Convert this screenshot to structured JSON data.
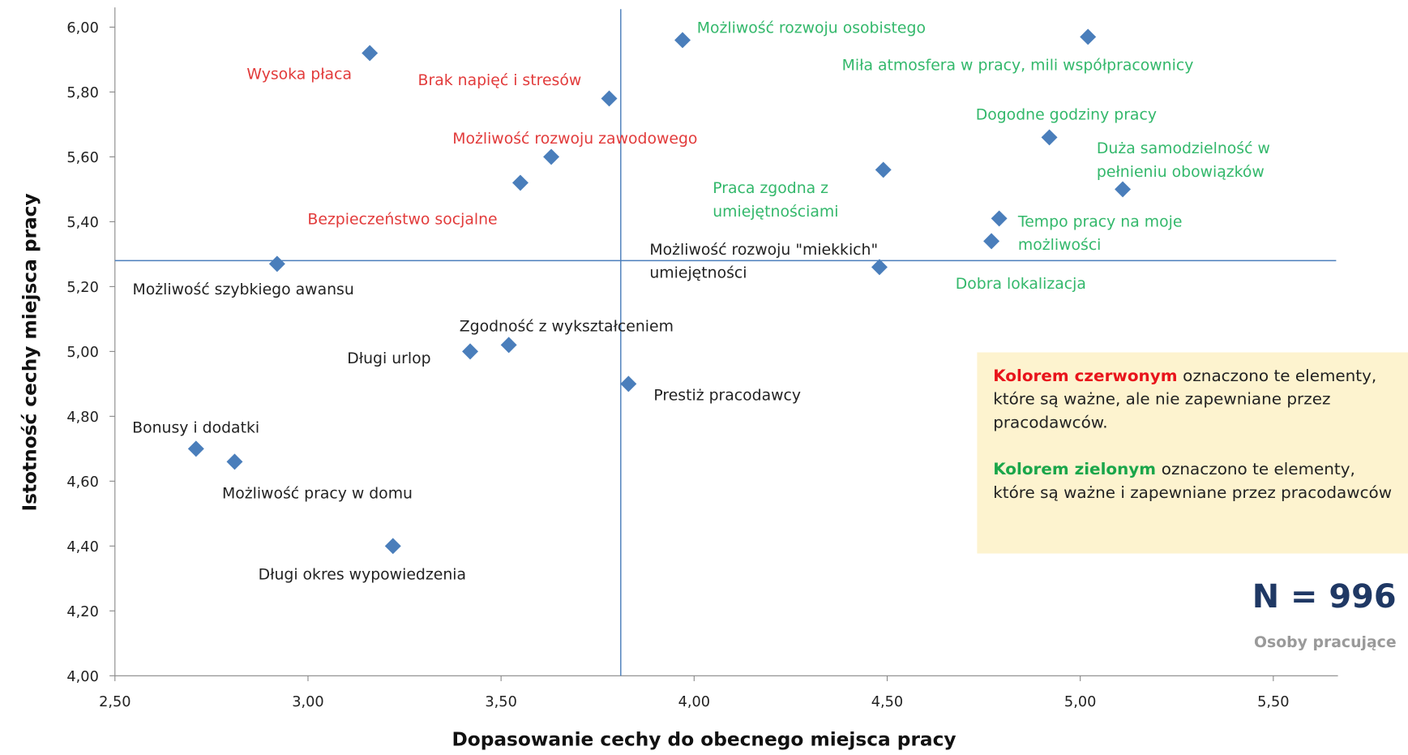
{
  "chart_data": {
    "type": "scatter",
    "x_label": "Dopasowanie cechy do obecnego miejsca pracy",
    "y_label": "Istotność cechy miejsca pracy",
    "xlim": [
      2.5,
      5.5
    ],
    "ylim": [
      4,
      6
    ],
    "xticks": [
      {
        "value": 2.5,
        "label": "2,50"
      },
      {
        "value": 3,
        "label": "3,00"
      },
      {
        "value": 3.5,
        "label": "3,50"
      },
      {
        "value": 4,
        "label": "4,00"
      },
      {
        "value": 4.5,
        "label": "4,50"
      },
      {
        "value": 5,
        "label": "5,00"
      },
      {
        "value": 5.5,
        "label": "5,50"
      }
    ],
    "yticks": [
      {
        "value": 4,
        "label": "4,00"
      },
      {
        "value": 4.2,
        "label": "4,20"
      },
      {
        "value": 4.4,
        "label": "4,40"
      },
      {
        "value": 4.6,
        "label": "4,60"
      },
      {
        "value": 4.8,
        "label": "4,80"
      },
      {
        "value": 5,
        "label": "5,00"
      },
      {
        "value": 5.2,
        "label": "5,20"
      },
      {
        "value": 5.4,
        "label": "5,40"
      },
      {
        "value": 5.6,
        "label": "5,60"
      },
      {
        "value": 5.8,
        "label": "5,80"
      },
      {
        "value": 6,
        "label": "6,00"
      }
    ],
    "marker_color": "#4a7ebb",
    "reference_lines": {
      "x": 3.81,
      "y": 5.28,
      "color": "#4a7ebb"
    },
    "points": [
      {
        "x": 3.16,
        "y": 5.92,
        "label": [
          "Wysoka płaca"
        ],
        "color": "#e23b3b"
      },
      {
        "x": 3.78,
        "y": 5.78,
        "label": [
          "Brak napięć i stresów"
        ],
        "color": "#e23b3b"
      },
      {
        "x": 3.63,
        "y": 5.6,
        "label": [
          "Możliwość rozwoju zawodowego"
        ],
        "color": "#e23b3b"
      },
      {
        "x": 3.55,
        "y": 5.52,
        "label": [
          "Bezpieczeństwo socjalne"
        ],
        "color": "#e23b3b"
      },
      {
        "x": 3.97,
        "y": 5.96,
        "label": [
          "Możliwość rozwoju osobistego"
        ],
        "color": "#33b86b"
      },
      {
        "x": 5.02,
        "y": 5.97,
        "label": [
          "Miła atmosfera w pracy, mili współpracownicy"
        ],
        "color": "#33b86b"
      },
      {
        "x": 4.92,
        "y": 5.66,
        "label": [
          "Dogodne godziny pracy"
        ],
        "color": "#33b86b"
      },
      {
        "x": 5.11,
        "y": 5.5,
        "label": [
          "Duża samodzielność w",
          "pełnieniu obowiązków"
        ],
        "color": "#33b86b"
      },
      {
        "x": 4.49,
        "y": 5.56,
        "label": [
          "Praca zgodna z",
          "umiejętnościami"
        ],
        "color": "#33b86b"
      },
      {
        "x": 4.79,
        "y": 5.41,
        "label": [
          "Tempo pracy na moje",
          "możliwości"
        ],
        "color": "#33b86b"
      },
      {
        "x": 4.77,
        "y": 5.34,
        "label": [
          "Dobra lokalizacja"
        ],
        "color": "#33b86b"
      },
      {
        "x": 4.48,
        "y": 5.26,
        "label": [
          "Możliwość rozwoju \"miekkich\"",
          "umiejętności"
        ],
        "color": "#222222"
      },
      {
        "x": 2.92,
        "y": 5.27,
        "label": [
          "Możliwość szybkiego awansu"
        ],
        "color": "#222222"
      },
      {
        "x": 3.52,
        "y": 5.02,
        "label": [
          "Zgodność z wykształceniem"
        ],
        "color": "#222222"
      },
      {
        "x": 3.42,
        "y": 5.0,
        "label": [
          "Długi urlop"
        ],
        "color": "#222222"
      },
      {
        "x": 3.83,
        "y": 4.9,
        "label": [
          "Prestiż pracodawcy"
        ],
        "color": "#222222"
      },
      {
        "x": 2.71,
        "y": 4.7,
        "label": [
          "Bonusy i dodatki"
        ],
        "color": "#222222"
      },
      {
        "x": 2.81,
        "y": 4.66,
        "label": [
          "Możliwość pracy w domu"
        ],
        "color": "#222222"
      },
      {
        "x": 3.22,
        "y": 4.4,
        "label": [
          "Długi okres wypowiedzenia"
        ],
        "color": "#222222"
      }
    ],
    "note": [
      {
        "highlight": "Kolorem czerwonym",
        "highlight_color": "#e8141b",
        "text": "oznaczono te elementy, które są ważne, ale nie zapewniane przez pracodawców."
      },
      {
        "highlight": "Kolorem zielonym",
        "highlight_color": "#1aa64a",
        "text": "oznaczono te elementy, które są ważne i zapewniane przez pracodawców"
      }
    ],
    "sample": "N = 996",
    "sample_desc": "Osoby pracujące"
  }
}
